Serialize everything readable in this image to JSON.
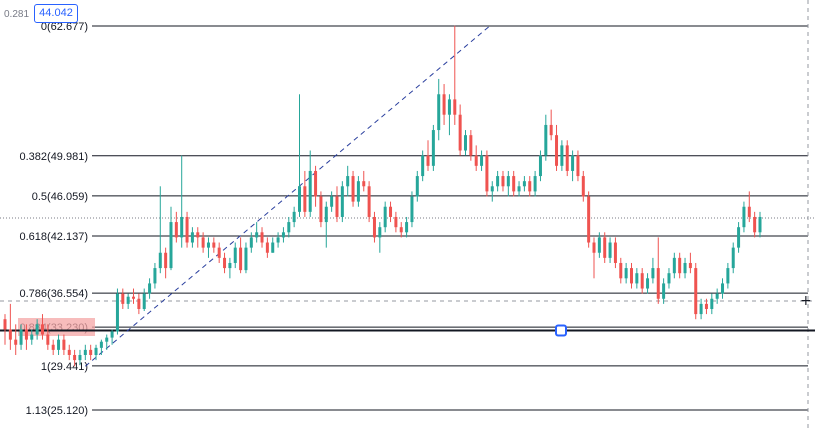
{
  "top_left_value": "0.281",
  "price_box": "44.042",
  "colors": {
    "up": "#26a69a",
    "down": "#ef5350",
    "trend": "#2a3f9e",
    "level": "#131722",
    "highlight": "#f4a5a5"
  },
  "chart_data": {
    "type": "candlestick",
    "x_range": [
      0,
      140
    ],
    "ylim": [
      25.0,
      62.7
    ],
    "fib_levels": [
      {
        "ratio": "0",
        "price": 62.677,
        "label": "0(62.677)"
      },
      {
        "ratio": "0.382",
        "price": 49.981,
        "label": "0.382(49.981)"
      },
      {
        "ratio": "0.5",
        "price": 46.059,
        "label": "0.5(46.059)"
      },
      {
        "ratio": "0.618",
        "price": 42.137,
        "label": "0.618(42.137)"
      },
      {
        "ratio": "0.786",
        "price": 36.554,
        "label": "0.786(36.554)"
      },
      {
        "ratio": "0.884",
        "price": 33.23,
        "label": "0.884(33.230)"
      },
      {
        "ratio": "1",
        "price": 29.441,
        "label": "1(29.441)"
      },
      {
        "ratio": "1.13",
        "price": 25.12,
        "label": "1.13(25.120)"
      }
    ],
    "trend_line": {
      "start": [
        15,
        29.4
      ],
      "end": [
        83,
        62.7
      ]
    },
    "horizontal_line_price": 32.9,
    "dotted_line_price": 43.9,
    "candles": [
      [
        34.0,
        34.5,
        31.5,
        33.0
      ],
      [
        33.0,
        35.5,
        31.0,
        32.0
      ],
      [
        32.0,
        33.5,
        30.5,
        31.5
      ],
      [
        31.5,
        33.5,
        31.0,
        33.0
      ],
      [
        33.0,
        33.5,
        31.0,
        32.0
      ],
      [
        32.0,
        33.0,
        31.5,
        32.5
      ],
      [
        32.5,
        34.0,
        32.0,
        33.5
      ],
      [
        33.5,
        34.5,
        32.0,
        32.5
      ],
      [
        32.5,
        33.5,
        31.0,
        31.5
      ],
      [
        31.5,
        32.0,
        30.5,
        31.0
      ],
      [
        31.0,
        32.5,
        30.5,
        32.0
      ],
      [
        32.0,
        32.5,
        30.5,
        31.0
      ],
      [
        31.0,
        31.5,
        30.0,
        30.5
      ],
      [
        30.5,
        31.0,
        29.4,
        30.0
      ],
      [
        30.0,
        31.0,
        29.5,
        30.5
      ],
      [
        30.5,
        31.5,
        30.0,
        31.0
      ],
      [
        31.0,
        31.5,
        30.0,
        30.5
      ],
      [
        30.5,
        31.5,
        30.0,
        31.2
      ],
      [
        31.2,
        32.0,
        30.5,
        31.8
      ],
      [
        31.8,
        32.5,
        31.0,
        32.2
      ],
      [
        32.2,
        33.0,
        31.5,
        32.8
      ],
      [
        32.8,
        37.0,
        32.5,
        36.5
      ],
      [
        36.5,
        37.0,
        35.0,
        35.5
      ],
      [
        35.5,
        36.5,
        35.0,
        36.2
      ],
      [
        36.2,
        37.0,
        35.5,
        36.0
      ],
      [
        36.0,
        36.5,
        34.5,
        35.0
      ],
      [
        35.0,
        37.0,
        34.8,
        36.5
      ],
      [
        36.5,
        38.0,
        36.0,
        37.5
      ],
      [
        37.5,
        39.5,
        37.0,
        39.0
      ],
      [
        39.0,
        47.0,
        38.5,
        40.5
      ],
      [
        40.5,
        41.0,
        38.0,
        39.0
      ],
      [
        39.0,
        45.0,
        38.8,
        43.5
      ],
      [
        43.5,
        44.5,
        41.5,
        42.0
      ],
      [
        42.0,
        50.0,
        41.0,
        44.0
      ],
      [
        44.0,
        44.5,
        41.0,
        41.5
      ],
      [
        41.5,
        43.0,
        41.0,
        42.5
      ],
      [
        42.5,
        43.0,
        41.0,
        42.0
      ],
      [
        42.0,
        42.5,
        40.5,
        41.0
      ],
      [
        41.0,
        42.0,
        40.0,
        41.5
      ],
      [
        41.5,
        42.0,
        40.5,
        41.0
      ],
      [
        41.0,
        41.5,
        39.5,
        40.0
      ],
      [
        40.0,
        40.5,
        38.5,
        39.0
      ],
      [
        39.0,
        40.0,
        38.0,
        39.5
      ],
      [
        39.5,
        41.5,
        39.0,
        41.0
      ],
      [
        41.0,
        42.0,
        38.5,
        38.8
      ],
      [
        38.8,
        41.5,
        38.5,
        41.0
      ],
      [
        41.0,
        42.5,
        40.5,
        42.0
      ],
      [
        42.0,
        43.5,
        41.5,
        42.5
      ],
      [
        42.5,
        43.0,
        41.0,
        41.5
      ],
      [
        41.5,
        42.0,
        40.0,
        40.5
      ],
      [
        40.5,
        42.0,
        40.5,
        41.5
      ],
      [
        41.5,
        42.5,
        41.0,
        42.0
      ],
      [
        42.0,
        43.0,
        41.5,
        42.5
      ],
      [
        42.5,
        44.0,
        42.0,
        43.5
      ],
      [
        43.5,
        45.0,
        43.0,
        44.5
      ],
      [
        44.5,
        56.0,
        44.0,
        47.0
      ],
      [
        47.0,
        48.5,
        44.0,
        44.5
      ],
      [
        44.5,
        50.5,
        44.0,
        48.5
      ],
      [
        48.5,
        49.0,
        45.0,
        46.0
      ],
      [
        46.0,
        46.5,
        43.0,
        43.5
      ],
      [
        43.5,
        45.5,
        41.0,
        45.0
      ],
      [
        45.0,
        46.5,
        44.5,
        46.0
      ],
      [
        46.0,
        47.0,
        43.5,
        44.0
      ],
      [
        44.0,
        47.5,
        43.5,
        47.0
      ],
      [
        47.0,
        49.0,
        46.0,
        48.0
      ],
      [
        48.0,
        48.5,
        45.0,
        45.5
      ],
      [
        45.5,
        48.0,
        45.0,
        47.5
      ],
      [
        47.5,
        48.5,
        46.5,
        47.0
      ],
      [
        47.0,
        47.5,
        43.5,
        44.0
      ],
      [
        44.0,
        44.5,
        41.5,
        42.0
      ],
      [
        42.0,
        43.5,
        40.5,
        43.0
      ],
      [
        43.0,
        45.5,
        42.5,
        45.0
      ],
      [
        45.0,
        45.5,
        43.5,
        44.0
      ],
      [
        44.0,
        44.5,
        42.5,
        43.0
      ],
      [
        43.0,
        43.5,
        42.0,
        42.5
      ],
      [
        42.5,
        44.0,
        42.0,
        43.5
      ],
      [
        43.5,
        46.5,
        43.0,
        46.0
      ],
      [
        46.0,
        48.5,
        45.5,
        48.0
      ],
      [
        48.0,
        50.5,
        47.5,
        50.0
      ],
      [
        50.0,
        51.5,
        48.5,
        49.0
      ],
      [
        49.0,
        53.0,
        48.5,
        52.5
      ],
      [
        52.5,
        57.5,
        51.5,
        56.0
      ],
      [
        56.0,
        57.0,
        53.0,
        54.0
      ],
      [
        54.0,
        56.0,
        52.0,
        55.5
      ],
      [
        55.5,
        62.7,
        53.0,
        54.0
      ],
      [
        54.0,
        55.0,
        50.0,
        50.5
      ],
      [
        50.5,
        52.5,
        50.0,
        52.0
      ],
      [
        52.0,
        52.5,
        49.5,
        50.0
      ],
      [
        50.0,
        51.0,
        48.5,
        49.0
      ],
      [
        49.0,
        50.5,
        48.5,
        50.0
      ],
      [
        50.0,
        50.5,
        46.0,
        46.5
      ],
      [
        46.5,
        47.5,
        45.5,
        47.0
      ],
      [
        47.0,
        48.5,
        46.5,
        48.0
      ],
      [
        48.0,
        48.5,
        46.5,
        47.0
      ],
      [
        47.0,
        48.5,
        46.0,
        48.0
      ],
      [
        48.0,
        48.5,
        46.0,
        46.5
      ],
      [
        46.5,
        47.5,
        46.0,
        47.0
      ],
      [
        47.0,
        48.0,
        46.5,
        47.5
      ],
      [
        47.5,
        48.0,
        46.0,
        46.5
      ],
      [
        46.5,
        48.5,
        46.0,
        48.0
      ],
      [
        48.0,
        50.5,
        47.5,
        50.0
      ],
      [
        50.0,
        54.0,
        49.5,
        53.0
      ],
      [
        53.0,
        54.5,
        51.5,
        52.0
      ],
      [
        52.0,
        53.0,
        48.5,
        49.0
      ],
      [
        49.0,
        51.5,
        48.5,
        51.0
      ],
      [
        51.0,
        51.5,
        48.0,
        48.5
      ],
      [
        48.5,
        50.5,
        47.5,
        50.0
      ],
      [
        50.0,
        50.5,
        47.5,
        48.0
      ],
      [
        48.0,
        48.5,
        45.5,
        46.0
      ],
      [
        46.0,
        46.5,
        41.0,
        41.5
      ],
      [
        41.5,
        42.0,
        38.0,
        40.5
      ],
      [
        40.5,
        42.5,
        40.0,
        42.0
      ],
      [
        42.0,
        42.5,
        39.5,
        40.0
      ],
      [
        40.0,
        42.0,
        39.5,
        41.5
      ],
      [
        41.5,
        42.0,
        39.0,
        39.5
      ],
      [
        39.5,
        40.0,
        37.5,
        38.0
      ],
      [
        38.0,
        39.5,
        37.5,
        39.0
      ],
      [
        39.0,
        39.5,
        37.0,
        37.5
      ],
      [
        37.5,
        39.0,
        37.0,
        38.5
      ],
      [
        38.5,
        39.0,
        36.5,
        37.0
      ],
      [
        37.0,
        38.5,
        36.5,
        38.0
      ],
      [
        38.0,
        40.0,
        37.5,
        39.0
      ],
      [
        39.0,
        42.0,
        35.5,
        36.0
      ],
      [
        36.0,
        38.0,
        35.5,
        37.5
      ],
      [
        37.5,
        39.0,
        37.0,
        38.5
      ],
      [
        38.5,
        40.5,
        38.0,
        40.0
      ],
      [
        40.0,
        40.5,
        38.0,
        38.5
      ],
      [
        38.5,
        40.0,
        38.0,
        39.5
      ],
      [
        39.5,
        40.5,
        38.5,
        39.0
      ],
      [
        39.0,
        39.5,
        34.0,
        34.5
      ],
      [
        34.5,
        36.0,
        34.0,
        35.5
      ],
      [
        35.5,
        36.0,
        34.5,
        35.0
      ],
      [
        35.0,
        36.5,
        34.5,
        36.0
      ],
      [
        36.0,
        37.0,
        35.5,
        36.5
      ],
      [
        36.5,
        38.0,
        36.0,
        37.5
      ],
      [
        37.5,
        39.5,
        37.0,
        39.0
      ],
      [
        39.0,
        41.5,
        38.5,
        41.0
      ],
      [
        41.0,
        43.5,
        40.5,
        43.0
      ],
      [
        43.0,
        45.5,
        42.5,
        45.0
      ],
      [
        45.0,
        46.5,
        43.5,
        44.0
      ],
      [
        44.0,
        44.5,
        42.0,
        42.5
      ],
      [
        42.5,
        44.5,
        42.0,
        44.0
      ]
    ]
  }
}
